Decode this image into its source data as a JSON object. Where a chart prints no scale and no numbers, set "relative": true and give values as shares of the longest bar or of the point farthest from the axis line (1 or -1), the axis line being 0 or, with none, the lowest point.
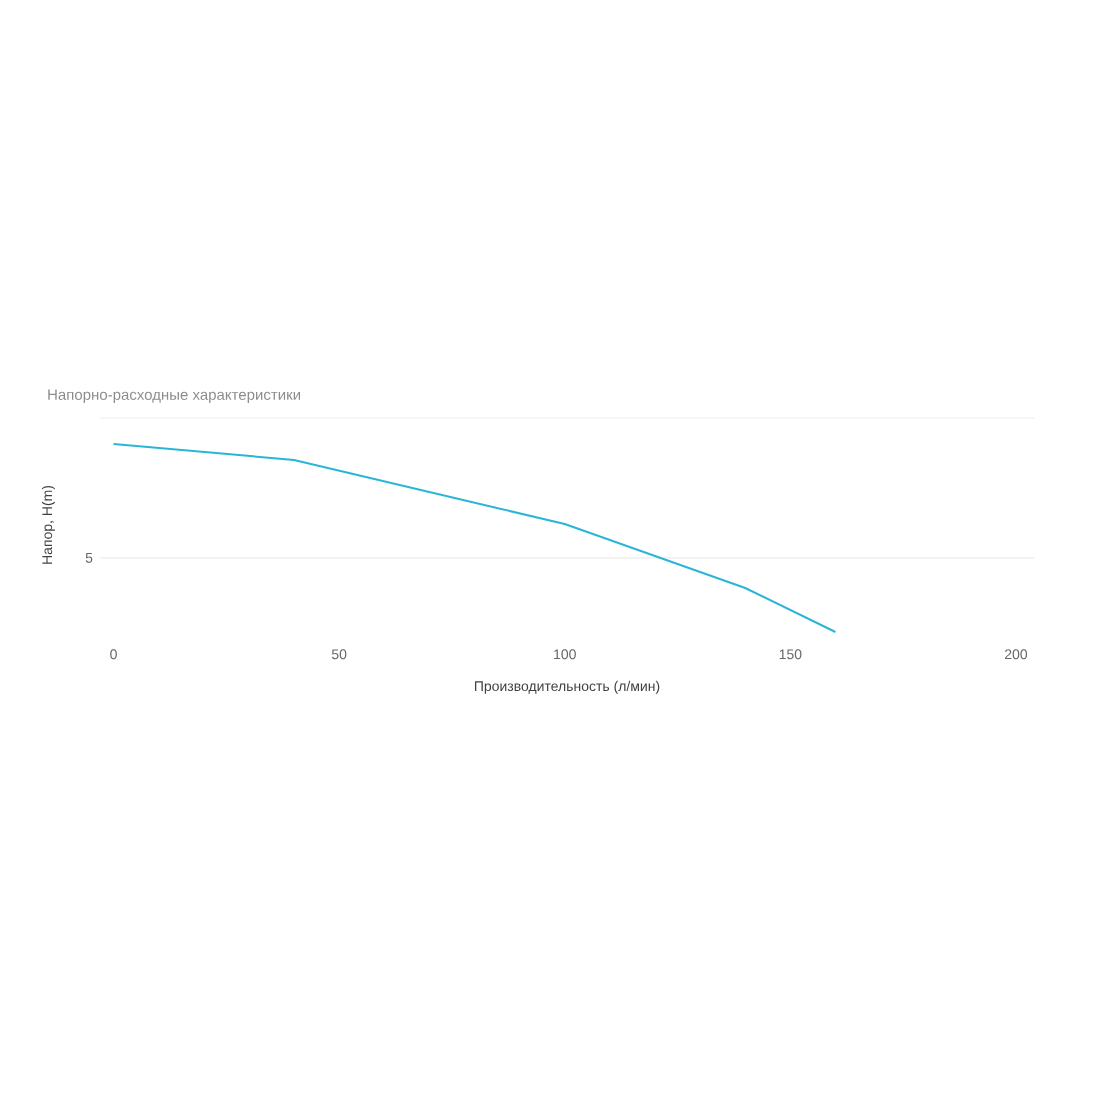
{
  "chart_data": {
    "type": "line",
    "title": "Напорно-расходные характеристики",
    "xlabel": "Производительность (л/мин)",
    "ylabel": "Напор, H(m)",
    "relative": true,
    "x": [
      0,
      40,
      100,
      140,
      160
    ],
    "series": [
      {
        "color": "#29b6d6",
        "values": [
          1,
          0.915,
          0.574,
          0.234,
          0
        ]
      }
    ],
    "xlim": [
      -3,
      204
    ],
    "xticks": [
      0,
      50,
      100,
      150,
      200
    ],
    "annotations": [
      "5"
    ],
    "ref_lines": [
      {
        "axis": "y",
        "value": 0.394,
        "color": "#ececec"
      },
      {
        "axis": "y",
        "value": 1.138,
        "color": "#ececec"
      }
    ],
    "marker": "none",
    "line_style": "solid"
  }
}
